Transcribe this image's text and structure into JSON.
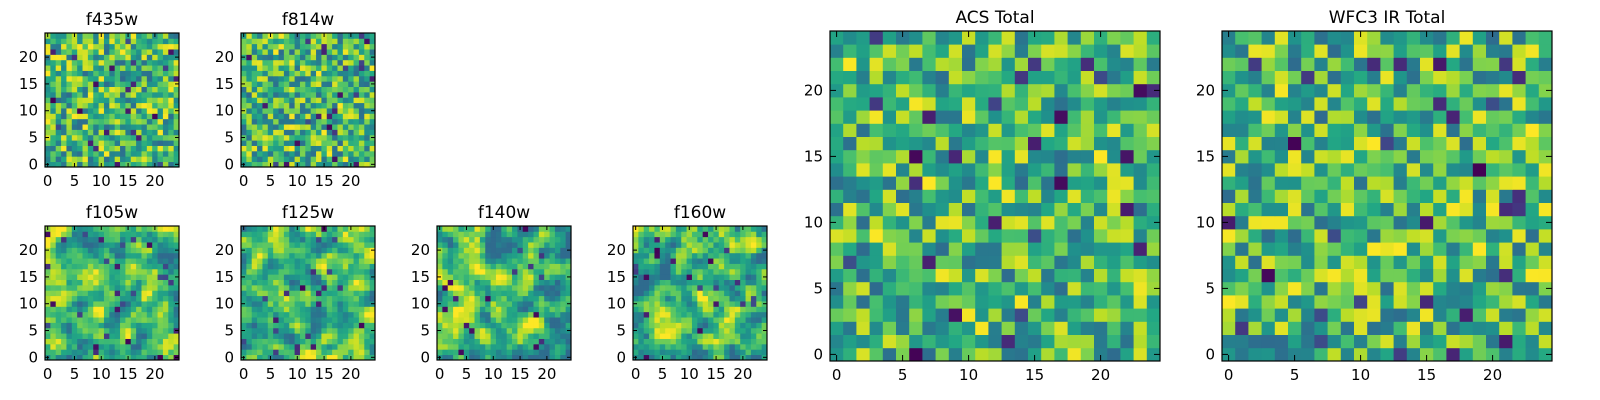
{
  "chart_data": [
    {
      "type": "heatmap",
      "title": "f435w",
      "size": [
        25,
        25
      ],
      "seed": 11,
      "smooth": 0,
      "xticks": [
        0,
        5,
        10,
        15,
        20
      ],
      "yticks": [
        0,
        5,
        10,
        15,
        20
      ],
      "x_tick_labels": [
        "0",
        "5",
        "10",
        "15",
        "20"
      ],
      "y_tick_labels": [
        "0",
        "5",
        "10",
        "15",
        "20"
      ],
      "colormap": "viridis"
    },
    {
      "type": "heatmap",
      "title": "f814w",
      "size": [
        25,
        25
      ],
      "seed": 23,
      "smooth": 0,
      "xticks": [
        0,
        5,
        10,
        15,
        20
      ],
      "yticks": [
        0,
        5,
        10,
        15,
        20
      ],
      "x_tick_labels": [
        "0",
        "5",
        "10",
        "15",
        "20"
      ],
      "y_tick_labels": [
        "0",
        "5",
        "10",
        "15",
        "20"
      ],
      "colormap": "viridis"
    },
    {
      "type": "heatmap",
      "title": "f105w",
      "size": [
        25,
        25
      ],
      "seed": 37,
      "smooth": 1,
      "xticks": [
        0,
        5,
        10,
        15,
        20
      ],
      "yticks": [
        0,
        5,
        10,
        15,
        20
      ],
      "x_tick_labels": [
        "0",
        "5",
        "10",
        "15",
        "20"
      ],
      "y_tick_labels": [
        "0",
        "5",
        "10",
        "15",
        "20"
      ],
      "colormap": "viridis"
    },
    {
      "type": "heatmap",
      "title": "f125w",
      "size": [
        25,
        25
      ],
      "seed": 41,
      "smooth": 1,
      "xticks": [
        0,
        5,
        10,
        15,
        20
      ],
      "yticks": [
        0,
        5,
        10,
        15,
        20
      ],
      "x_tick_labels": [
        "0",
        "5",
        "10",
        "15",
        "20"
      ],
      "y_tick_labels": [
        "0",
        "5",
        "10",
        "15",
        "20"
      ],
      "colormap": "viridis"
    },
    {
      "type": "heatmap",
      "title": "f140w",
      "size": [
        25,
        25
      ],
      "seed": 53,
      "smooth": 1,
      "xticks": [
        0,
        5,
        10,
        15,
        20
      ],
      "yticks": [
        0,
        5,
        10,
        15,
        20
      ],
      "x_tick_labels": [
        "0",
        "5",
        "10",
        "15",
        "20"
      ],
      "y_tick_labels": [
        "0",
        "5",
        "10",
        "15",
        "20"
      ],
      "colormap": "viridis"
    },
    {
      "type": "heatmap",
      "title": "f160w",
      "size": [
        25,
        25
      ],
      "seed": 67,
      "smooth": 1,
      "xticks": [
        0,
        5,
        10,
        15,
        20
      ],
      "yticks": [
        0,
        5,
        10,
        15,
        20
      ],
      "x_tick_labels": [
        "0",
        "5",
        "10",
        "15",
        "20"
      ],
      "y_tick_labels": [
        "0",
        "5",
        "10",
        "15",
        "20"
      ],
      "colormap": "viridis"
    },
    {
      "type": "heatmap",
      "title": "ACS Total",
      "size": [
        25,
        25
      ],
      "seed": 79,
      "smooth": 0,
      "xticks": [
        0,
        5,
        10,
        15,
        20
      ],
      "yticks": [
        0,
        5,
        10,
        15,
        20
      ],
      "x_tick_labels": [
        "0",
        "5",
        "10",
        "15",
        "20"
      ],
      "y_tick_labels": [
        "0",
        "5",
        "10",
        "15",
        "20"
      ],
      "colormap": "viridis"
    },
    {
      "type": "heatmap",
      "title": "WFC3 IR Total",
      "size": [
        25,
        25
      ],
      "seed": 97,
      "smooth": 0,
      "xticks": [
        0,
        5,
        10,
        15,
        20
      ],
      "yticks": [
        0,
        5,
        10,
        15,
        20
      ],
      "x_tick_labels": [
        "0",
        "5",
        "10",
        "15",
        "20"
      ],
      "y_tick_labels": [
        "0",
        "5",
        "10",
        "15",
        "20"
      ],
      "colormap": "viridis"
    }
  ]
}
